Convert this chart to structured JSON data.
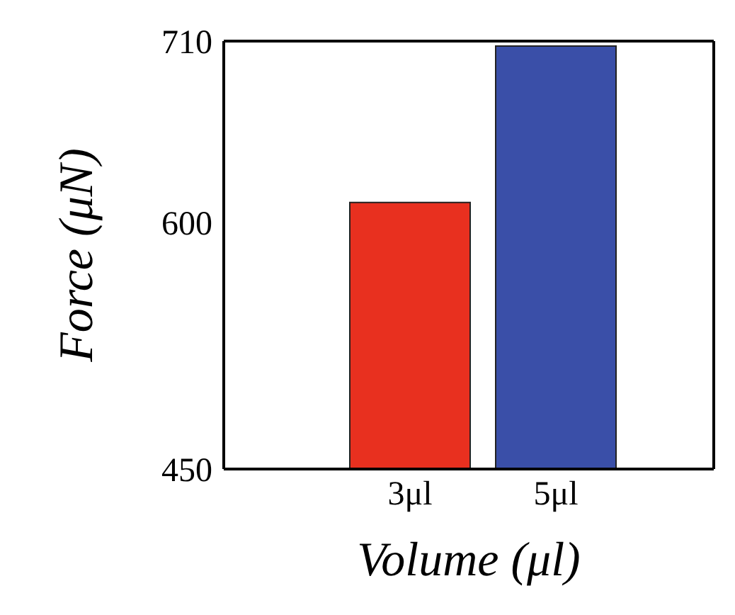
{
  "chart_data": {
    "type": "bar",
    "xlabel": "Volume (μl)",
    "ylabel": "Force (μN)",
    "categories": [
      "3μl",
      "5μl"
    ],
    "values": [
      612,
      707
    ],
    "colors": [
      "#e8301f",
      "#3a4fa8"
    ],
    "ylim": [
      450,
      710
    ],
    "yticks": [
      450,
      600,
      710
    ],
    "grid": false
  }
}
